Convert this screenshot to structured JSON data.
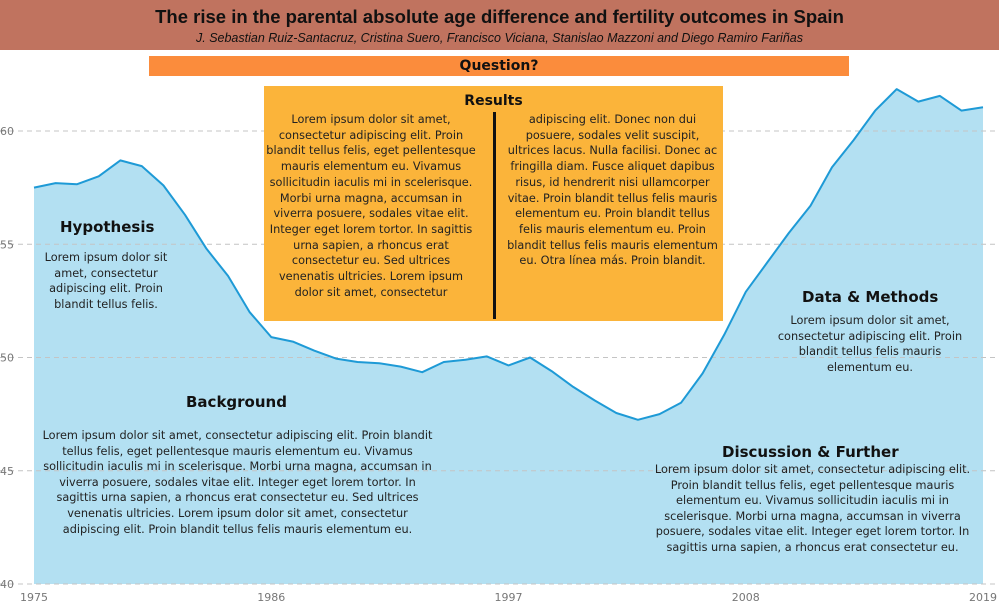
{
  "header": {
    "title": "The rise in the parental absolute age difference and fertility outcomes in Spain",
    "authors": "J. Sebastian Ruiz-Santacruz, Cristina Suero, Francisco Viciana, Stanislao Mazzoni and Diego Ramiro Fariñas"
  },
  "question_label": "Question?",
  "results": {
    "title": "Results",
    "left_text": "Lorem ipsum dolor sit amet, consectetur adipiscing elit. Proin blandit tellus felis, eget pellentesque mauris elementum eu. Vivamus sollicitudin iaculis mi in scelerisque. Morbi urna magna, accumsan in viverra posuere, sodales vitae elit. Integer eget lorem tortor. In sagittis urna sapien, a rhoncus erat consectetur eu. Sed ultrices venenatis ultricies. Lorem ipsum dolor sit amet, consectetur",
    "right_text": "adipiscing elit. Donec non dui posuere, sodales velit suscipit, ultrices lacus. Nulla facilisi. Donec ac fringilla diam. Fusce aliquet dapibus risus, id hendrerit nisi ullamcorper vitae. Proin blandit tellus felis mauris elementum eu. Proin blandit tellus felis mauris elementum eu. Proin blandit tellus felis mauris elementum eu. Otra línea más. Proin blandit."
  },
  "hypothesis": {
    "title": "Hypothesis",
    "text": "Lorem ipsum dolor sit amet, consectetur adipiscing elit. Proin blandit tellus felis."
  },
  "background": {
    "title": "Background",
    "text": "Lorem ipsum dolor sit amet, consectetur adipiscing elit. Proin blandit tellus felis, eget pellentesque mauris elementum eu. Vivamus sollicitudin iaculis mi in scelerisque. Morbi urna magna, accumsan in viverra posuere, sodales vitae elit. Integer eget lorem tortor. In sagittis urna sapien, a rhoncus erat consectetur eu. Sed ultrices venenatis ultricies. Lorem ipsum dolor sit amet, consectetur adipiscing elit. Proin blandit tellus felis mauris elementum eu."
  },
  "data_methods": {
    "title": "Data & Methods",
    "text": "Lorem ipsum dolor sit amet, consectetur adipiscing elit. Proin blandit tellus felis mauris elementum eu."
  },
  "discussion": {
    "title": "Discussion & Further",
    "text": "Lorem ipsum dolor sit amet, consectetur adipiscing elit. Proin blandit tellus felis, eget pellentesque mauris elementum eu. Vivamus sollicitudin iaculis mi in scelerisque. Morbi urna magna, accumsan in viverra posuere, sodales vitae elit. Integer eget lorem tortor. In sagittis urna sapien, a rhoncus erat consectetur eu."
  },
  "colors": {
    "header": "#c0735f",
    "question_bar": "#fb8c3c",
    "results_box": "#fbb43a",
    "area_fill": "#b3e0f2",
    "line": "#1e9ad6"
  },
  "chart_data": {
    "type": "area",
    "x": [
      1975,
      1976,
      1977,
      1978,
      1979,
      1980,
      1981,
      1982,
      1983,
      1984,
      1985,
      1986,
      1987,
      1988,
      1989,
      1990,
      1991,
      1992,
      1993,
      1994,
      1995,
      1996,
      1997,
      1998,
      1999,
      2000,
      2001,
      2002,
      2003,
      2004,
      2005,
      2006,
      2007,
      2008,
      2009,
      2010,
      2011,
      2012,
      2013,
      2014,
      2015,
      2016,
      2017,
      2018,
      2019
    ],
    "y": [
      57.5,
      57.7,
      57.65,
      58.0,
      58.7,
      58.45,
      57.6,
      56.3,
      54.8,
      53.6,
      52.0,
      50.9,
      50.7,
      50.3,
      49.95,
      49.8,
      49.75,
      49.6,
      49.35,
      49.8,
      49.9,
      50.05,
      49.65,
      50.0,
      49.4,
      48.7,
      48.1,
      47.55,
      47.25,
      47.5,
      48.0,
      49.3,
      51.0,
      52.9,
      54.2,
      55.5,
      56.7,
      58.4,
      59.6,
      60.9,
      61.85,
      61.3,
      61.55,
      60.9,
      61.05
    ],
    "xticks": [
      "1975",
      "1986",
      "1997",
      "2008",
      "2019"
    ],
    "yticks": [
      "40",
      "45",
      "50",
      "55",
      "60"
    ],
    "ylim": [
      40,
      62.5
    ],
    "grid": true
  }
}
